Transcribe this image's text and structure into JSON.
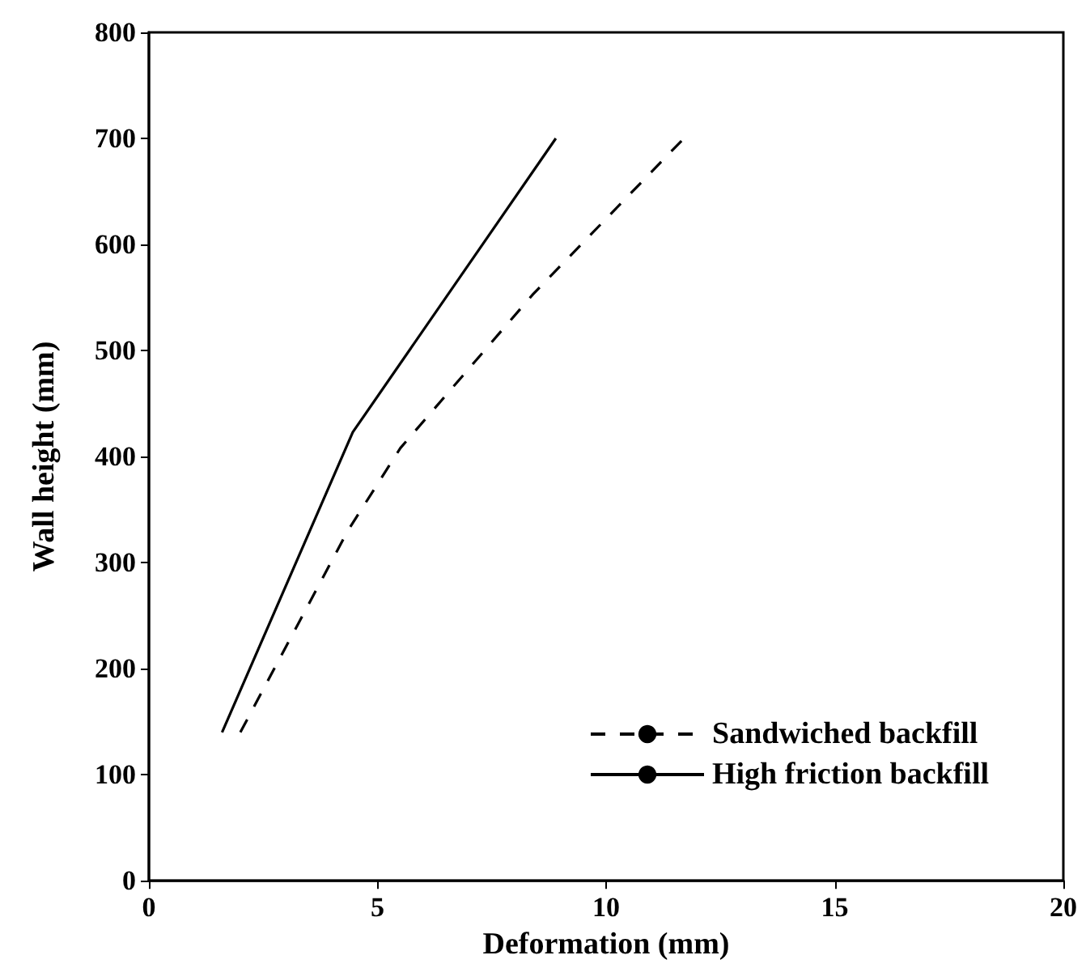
{
  "chart_data": {
    "type": "line",
    "xlabel": "Deformation (mm)",
    "ylabel": "Wall height (mm)",
    "xlim": [
      0,
      20
    ],
    "xticks": [
      0,
      5,
      10,
      15,
      20
    ],
    "ylim": [
      0,
      800
    ],
    "yticks": [
      0,
      100,
      200,
      300,
      400,
      500,
      600,
      700,
      800
    ],
    "grid": false,
    "legend": "bottom right",
    "marker": "none",
    "series": [
      {
        "name": "Sandwiched backfill",
        "color": "#000000",
        "line_style": "dashed",
        "x": [
          2.0,
          4.35,
          5.5,
          8.4,
          11.7
        ],
        "values": [
          140,
          330,
          408,
          553,
          700
        ]
      },
      {
        "name": "High friction backfill",
        "color": "#000000",
        "line_style": "solid",
        "x": [
          1.6,
          4.46,
          8.9
        ],
        "values": [
          140,
          423,
          700
        ]
      }
    ]
  }
}
